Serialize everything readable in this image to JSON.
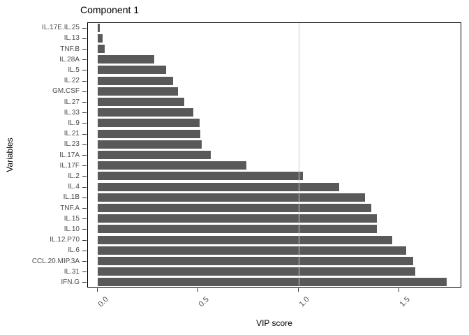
{
  "chart_data": {
    "type": "bar",
    "orientation": "horizontal",
    "title": "Component 1",
    "xlabel": "VIP score",
    "ylabel": "Variables",
    "categories": [
      "IL.17E.IL.25",
      "IL.13",
      "TNF.B",
      "IL.28A",
      "IL.5",
      "IL.22",
      "GM.CSF",
      "IL.27",
      "IL.33",
      "IL.9",
      "IL.21",
      "IL.23",
      "IL.17A",
      "IL.17F",
      "IL.2",
      "IL.4",
      "IL.1B",
      "TNF.A",
      "IL.15",
      "IL.10",
      "IL.12.P70",
      "IL.6",
      "CCL.20.MIP.3A",
      "IL.31",
      "IFN.G"
    ],
    "values": [
      0.01,
      0.022,
      0.035,
      0.28,
      0.34,
      0.375,
      0.4,
      0.43,
      0.475,
      0.505,
      0.51,
      0.515,
      0.56,
      0.74,
      1.02,
      1.2,
      1.33,
      1.36,
      1.39,
      1.39,
      1.465,
      1.535,
      1.57,
      1.58,
      1.735
    ],
    "x_ticks": [
      0.0,
      0.5,
      1.0,
      1.5
    ],
    "x_tick_labels": [
      "0.0",
      "0.5",
      "1.0",
      "1.5"
    ],
    "xlim": [
      -0.05,
      1.8125
    ],
    "reference_line_x": 1.0,
    "grid": false,
    "legend": false,
    "colors": {
      "bar_fill": "#595959",
      "reference_line": "#c9c9c9",
      "axis_text": "#4a4a4a",
      "panel_border": "#000000",
      "title_text": "#000000"
    }
  }
}
